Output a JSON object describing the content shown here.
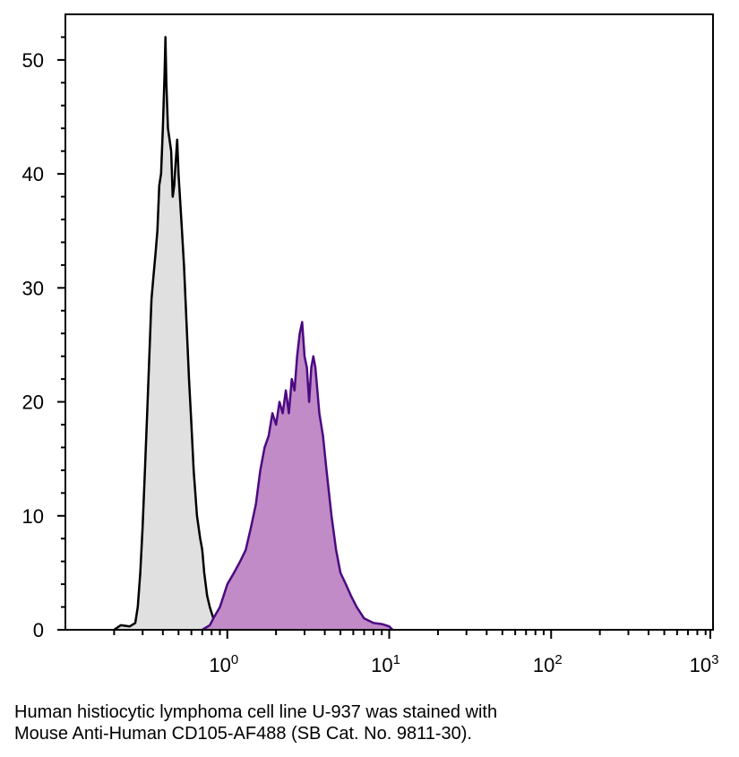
{
  "chart_data": {
    "type": "area",
    "title": "",
    "xlabel": "",
    "ylabel": "",
    "x_scale": "log",
    "xlim": [
      0.1,
      1000
    ],
    "ylim": [
      0,
      54
    ],
    "grid": false,
    "legend": "none",
    "y_ticks": [
      0,
      10,
      20,
      30,
      40,
      50
    ],
    "y_tick_labels": [
      "0",
      "10",
      "20",
      "30",
      "40",
      "50"
    ],
    "x_ticks": [
      1,
      10,
      100,
      1000
    ],
    "x_tick_labels": [
      {
        "base": "10",
        "exp": "0"
      },
      {
        "base": "10",
        "exp": "1"
      },
      {
        "base": "10",
        "exp": "2"
      },
      {
        "base": "10",
        "exp": "3"
      }
    ],
    "series": [
      {
        "fill": "#e0e0e0",
        "stroke": "#000000",
        "points": [
          [
            0.2,
            0
          ],
          [
            0.22,
            0.4
          ],
          [
            0.25,
            0.3
          ],
          [
            0.27,
            0.6
          ],
          [
            0.28,
            2
          ],
          [
            0.29,
            5
          ],
          [
            0.3,
            9
          ],
          [
            0.31,
            14
          ],
          [
            0.32,
            19
          ],
          [
            0.33,
            24
          ],
          [
            0.34,
            29
          ],
          [
            0.35,
            31
          ],
          [
            0.36,
            33
          ],
          [
            0.37,
            35
          ],
          [
            0.38,
            39
          ],
          [
            0.39,
            40
          ],
          [
            0.4,
            44
          ],
          [
            0.41,
            49
          ],
          [
            0.415,
            52
          ],
          [
            0.42,
            48
          ],
          [
            0.43,
            44
          ],
          [
            0.44,
            43
          ],
          [
            0.45,
            42
          ],
          [
            0.46,
            38
          ],
          [
            0.47,
            39
          ],
          [
            0.48,
            41
          ],
          [
            0.49,
            43
          ],
          [
            0.5,
            40
          ],
          [
            0.52,
            36
          ],
          [
            0.54,
            32
          ],
          [
            0.56,
            27
          ],
          [
            0.58,
            22
          ],
          [
            0.6,
            18
          ],
          [
            0.62,
            14
          ],
          [
            0.65,
            10
          ],
          [
            0.68,
            8
          ],
          [
            0.7,
            7
          ],
          [
            0.72,
            5
          ],
          [
            0.75,
            3
          ],
          [
            0.78,
            2
          ],
          [
            0.82,
            1
          ],
          [
            0.87,
            0.6
          ],
          [
            0.95,
            0
          ]
        ]
      },
      {
        "fill": "#c08bc6",
        "stroke": "#4b0a82",
        "points": [
          [
            0.7,
            0
          ],
          [
            0.78,
            0.4
          ],
          [
            0.82,
            1
          ],
          [
            0.9,
            2
          ],
          [
            0.95,
            3
          ],
          [
            1.0,
            4
          ],
          [
            1.1,
            5
          ],
          [
            1.2,
            6
          ],
          [
            1.3,
            7
          ],
          [
            1.4,
            9
          ],
          [
            1.5,
            11
          ],
          [
            1.6,
            14
          ],
          [
            1.7,
            16
          ],
          [
            1.8,
            17
          ],
          [
            1.9,
            19
          ],
          [
            2.0,
            18
          ],
          [
            2.1,
            20
          ],
          [
            2.2,
            19
          ],
          [
            2.3,
            21
          ],
          [
            2.4,
            19
          ],
          [
            2.5,
            22
          ],
          [
            2.6,
            21
          ],
          [
            2.7,
            24
          ],
          [
            2.8,
            26
          ],
          [
            2.9,
            27
          ],
          [
            3.0,
            24
          ],
          [
            3.1,
            23
          ],
          [
            3.2,
            20
          ],
          [
            3.3,
            23
          ],
          [
            3.4,
            24
          ],
          [
            3.5,
            23
          ],
          [
            3.7,
            19
          ],
          [
            3.9,
            17
          ],
          [
            4.1,
            14
          ],
          [
            4.4,
            10
          ],
          [
            4.7,
            7
          ],
          [
            5.0,
            5
          ],
          [
            5.4,
            4
          ],
          [
            5.8,
            3
          ],
          [
            6.3,
            2
          ],
          [
            7.0,
            1
          ],
          [
            8.0,
            0.6
          ],
          [
            9.0,
            0.5
          ],
          [
            10.0,
            0.3
          ],
          [
            10.5,
            0
          ]
        ]
      }
    ]
  },
  "caption": {
    "line1": "Human histiocytic lymphoma cell line U-937 was stained with",
    "line2": "Mouse Anti-Human CD105-AF488 (SB Cat. No. 9811-30)."
  }
}
